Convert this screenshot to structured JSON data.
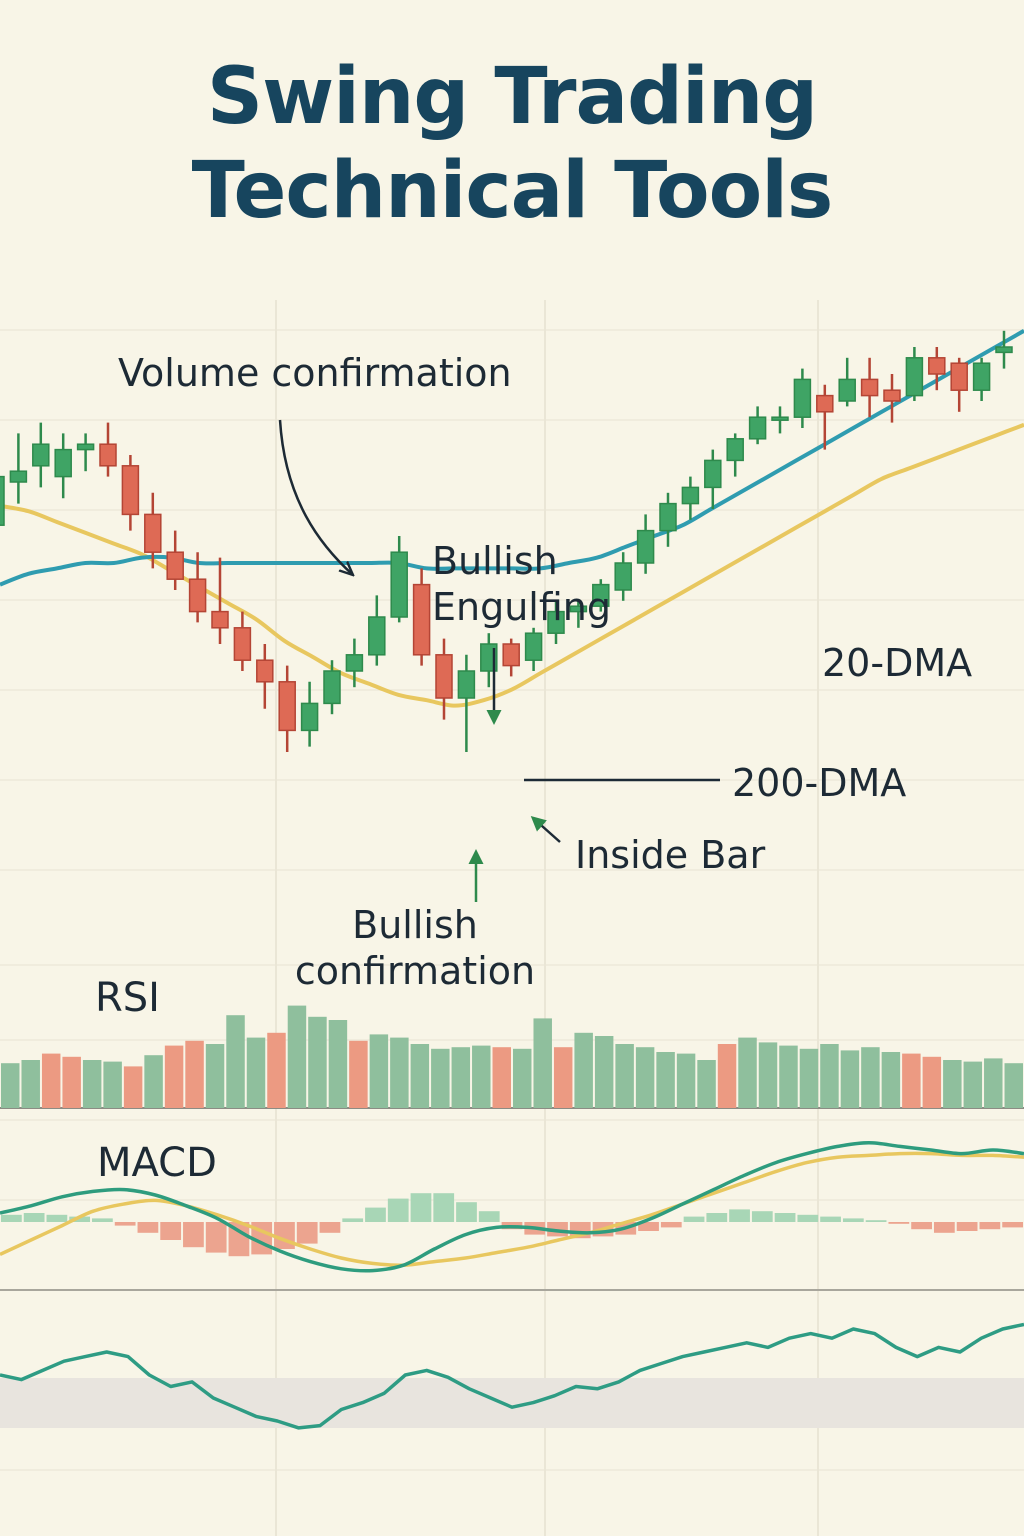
{
  "title": {
    "line1": "Swing Trading",
    "line2": "Technical Tools"
  },
  "annotations": {
    "volume": "Volume confirmation",
    "engulfing_1": "Bullish",
    "engulfing_2": "Engulfing",
    "dma20": "20-DMA",
    "dma200": "200-DMA",
    "inside_bar": "Inside Bar",
    "confirm_1": "Bullish",
    "confirm_2": "confirmation"
  },
  "panels": {
    "rsi": "RSI",
    "macd": "MACD"
  },
  "colors": {
    "bullish": "#3fa465",
    "bearish": "#de6a55",
    "wick_bull": "#2e8a4c",
    "wick_bear": "#b44535",
    "dma20": "#e8c75f",
    "dma200": "#2f9cb0",
    "vol_bull": "#8fbf9d",
    "vol_bear": "#ec9a82",
    "macd_line": "#2e9c7e",
    "signal_line": "#e8c75f",
    "oscillator": "#2e9c84"
  },
  "chart_data": {
    "type": "candlestick",
    "ylim": [
      0,
      100
    ],
    "candles": [
      {
        "o": 62,
        "h": 73,
        "l": 58,
        "c": 71
      },
      {
        "o": 70,
        "h": 79,
        "l": 66,
        "c": 72
      },
      {
        "o": 73,
        "h": 81,
        "l": 69,
        "c": 77
      },
      {
        "o": 71,
        "h": 79,
        "l": 67,
        "c": 76
      },
      {
        "o": 76,
        "h": 79,
        "l": 72,
        "c": 77
      },
      {
        "o": 77,
        "h": 81,
        "l": 71,
        "c": 73
      },
      {
        "o": 73,
        "h": 75,
        "l": 61,
        "c": 64
      },
      {
        "o": 64,
        "h": 68,
        "l": 54,
        "c": 57
      },
      {
        "o": 57,
        "h": 61,
        "l": 50,
        "c": 52
      },
      {
        "o": 52,
        "h": 57,
        "l": 44,
        "c": 46
      },
      {
        "o": 46,
        "h": 56,
        "l": 40,
        "c": 43
      },
      {
        "o": 43,
        "h": 46,
        "l": 35,
        "c": 37
      },
      {
        "o": 37,
        "h": 40,
        "l": 28,
        "c": 33
      },
      {
        "o": 33,
        "h": 36,
        "l": 20,
        "c": 24
      },
      {
        "o": 24,
        "h": 33,
        "l": 21,
        "c": 29
      },
      {
        "o": 29,
        "h": 37,
        "l": 27,
        "c": 35
      },
      {
        "o": 35,
        "h": 41,
        "l": 32,
        "c": 38
      },
      {
        "o": 38,
        "h": 49,
        "l": 36,
        "c": 45
      },
      {
        "o": 45,
        "h": 60,
        "l": 44,
        "c": 57
      },
      {
        "o": 51,
        "h": 54,
        "l": 36,
        "c": 38
      },
      {
        "o": 38,
        "h": 41,
        "l": 26,
        "c": 30
      },
      {
        "o": 30,
        "h": 38,
        "l": 20,
        "c": 35
      },
      {
        "o": 35,
        "h": 42,
        "l": 32,
        "c": 40
      },
      {
        "o": 40,
        "h": 41,
        "l": 34,
        "c": 36
      },
      {
        "o": 37,
        "h": 43,
        "l": 35,
        "c": 42
      },
      {
        "o": 42,
        "h": 48,
        "l": 40,
        "c": 46
      },
      {
        "o": 46,
        "h": 48,
        "l": 43,
        "c": 47
      },
      {
        "o": 47,
        "h": 52,
        "l": 46,
        "c": 51
      },
      {
        "o": 50,
        "h": 57,
        "l": 48,
        "c": 55
      },
      {
        "o": 55,
        "h": 64,
        "l": 53,
        "c": 61
      },
      {
        "o": 61,
        "h": 68,
        "l": 58,
        "c": 66
      },
      {
        "o": 66,
        "h": 71,
        "l": 63,
        "c": 69
      },
      {
        "o": 69,
        "h": 76,
        "l": 65,
        "c": 74
      },
      {
        "o": 74,
        "h": 79,
        "l": 71,
        "c": 78
      },
      {
        "o": 78,
        "h": 84,
        "l": 77,
        "c": 82
      },
      {
        "o": 82,
        "h": 84,
        "l": 79,
        "c": 82
      },
      {
        "o": 82,
        "h": 91,
        "l": 80,
        "c": 89
      },
      {
        "o": 86,
        "h": 88,
        "l": 76,
        "c": 83
      },
      {
        "o": 85,
        "h": 93,
        "l": 84,
        "c": 89
      },
      {
        "o": 89,
        "h": 93,
        "l": 82,
        "c": 86
      },
      {
        "o": 87,
        "h": 90,
        "l": 81,
        "c": 85
      },
      {
        "o": 86,
        "h": 95,
        "l": 85,
        "c": 93
      },
      {
        "o": 93,
        "h": 95,
        "l": 87,
        "c": 90
      },
      {
        "o": 92,
        "h": 93,
        "l": 83,
        "c": 87
      },
      {
        "o": 87,
        "h": 93,
        "l": 85,
        "c": 92
      },
      {
        "o": 94,
        "h": 98,
        "l": 91,
        "c": 95
      }
    ],
    "dma20": [
      73,
      72,
      70,
      68,
      66,
      64,
      61,
      58,
      55,
      52,
      48,
      45,
      42,
      40,
      38,
      37,
      36,
      37,
      39,
      42,
      45,
      48,
      51,
      54,
      57,
      60,
      63,
      66,
      69,
      72,
      75,
      78,
      80,
      82,
      84,
      86,
      88
    ],
    "dma200": [
      51,
      53,
      54,
      55,
      55,
      56,
      56,
      55,
      55,
      55,
      55,
      55,
      55,
      55,
      55,
      54,
      54,
      54,
      54,
      54,
      55,
      56,
      58,
      60,
      62,
      65,
      68,
      71,
      74,
      77,
      80,
      83,
      86,
      89,
      92,
      95,
      98
    ],
    "volume": [
      {
        "v": 28,
        "d": "bull"
      },
      {
        "v": 30,
        "d": "bull"
      },
      {
        "v": 34,
        "d": "bear"
      },
      {
        "v": 32,
        "d": "bear"
      },
      {
        "v": 30,
        "d": "bull"
      },
      {
        "v": 29,
        "d": "bull"
      },
      {
        "v": 26,
        "d": "bear"
      },
      {
        "v": 33,
        "d": "bull"
      },
      {
        "v": 39,
        "d": "bear"
      },
      {
        "v": 42,
        "d": "bear"
      },
      {
        "v": 40,
        "d": "bull"
      },
      {
        "v": 58,
        "d": "bull"
      },
      {
        "v": 44,
        "d": "bull"
      },
      {
        "v": 47,
        "d": "bear"
      },
      {
        "v": 64,
        "d": "bull"
      },
      {
        "v": 57,
        "d": "bull"
      },
      {
        "v": 55,
        "d": "bull"
      },
      {
        "v": 42,
        "d": "bear"
      },
      {
        "v": 46,
        "d": "bull"
      },
      {
        "v": 44,
        "d": "bull"
      },
      {
        "v": 40,
        "d": "bull"
      },
      {
        "v": 37,
        "d": "bull"
      },
      {
        "v": 38,
        "d": "bull"
      },
      {
        "v": 39,
        "d": "bull"
      },
      {
        "v": 38,
        "d": "bear"
      },
      {
        "v": 37,
        "d": "bull"
      },
      {
        "v": 56,
        "d": "bull"
      },
      {
        "v": 38,
        "d": "bear"
      },
      {
        "v": 47,
        "d": "bull"
      },
      {
        "v": 45,
        "d": "bull"
      },
      {
        "v": 40,
        "d": "bull"
      },
      {
        "v": 38,
        "d": "bull"
      },
      {
        "v": 35,
        "d": "bull"
      },
      {
        "v": 34,
        "d": "bull"
      },
      {
        "v": 30,
        "d": "bull"
      },
      {
        "v": 40,
        "d": "bear"
      },
      {
        "v": 44,
        "d": "bull"
      },
      {
        "v": 41,
        "d": "bull"
      },
      {
        "v": 39,
        "d": "bull"
      },
      {
        "v": 37,
        "d": "bull"
      },
      {
        "v": 40,
        "d": "bull"
      },
      {
        "v": 36,
        "d": "bull"
      },
      {
        "v": 38,
        "d": "bull"
      },
      {
        "v": 35,
        "d": "bull"
      },
      {
        "v": 34,
        "d": "bear"
      },
      {
        "v": 32,
        "d": "bear"
      },
      {
        "v": 30,
        "d": "bull"
      },
      {
        "v": 29,
        "d": "bull"
      },
      {
        "v": 31,
        "d": "bull"
      },
      {
        "v": 28,
        "d": "bull"
      }
    ],
    "macd": {
      "line": [
        5,
        9,
        14,
        17,
        18,
        15,
        9,
        2,
        -8,
        -16,
        -22,
        -26,
        -27,
        -24,
        -15,
        -7,
        -3,
        -3,
        -5,
        -6,
        -4,
        2,
        10,
        18,
        26,
        33,
        38,
        42,
        44,
        42,
        40,
        38,
        40,
        38
      ],
      "signal": [
        -18,
        -10,
        -2,
        6,
        10,
        12,
        9,
        4,
        -2,
        -9,
        -15,
        -20,
        -23,
        -24,
        -22,
        -20,
        -17,
        -14,
        -10,
        -6,
        -1,
        4,
        10,
        16,
        22,
        28,
        33,
        36,
        37,
        38,
        38,
        37,
        37,
        36
      ],
      "histogram": [
        4,
        5,
        4,
        3,
        2,
        -2,
        -6,
        -10,
        -14,
        -17,
        -19,
        -18,
        -15,
        -12,
        -6,
        2,
        8,
        13,
        16,
        16,
        11,
        6,
        -4,
        -7,
        -8,
        -9,
        -8,
        -7,
        -5,
        -3,
        3,
        5,
        7,
        6,
        5,
        4,
        3,
        2,
        1,
        -1,
        -4,
        -6,
        -5,
        -4,
        -3
      ]
    },
    "oscillator": [
      50,
      48,
      52,
      56,
      58,
      60,
      58,
      50,
      45,
      47,
      40,
      36,
      32,
      30,
      27,
      28,
      35,
      38,
      42,
      50,
      52,
      49,
      44,
      40,
      36,
      38,
      41,
      45,
      44,
      47,
      52,
      55,
      58,
      60,
      62,
      64,
      62,
      66,
      68,
      66,
      70,
      68,
      62,
      58,
      62,
      60,
      66,
      70,
      72
    ]
  }
}
